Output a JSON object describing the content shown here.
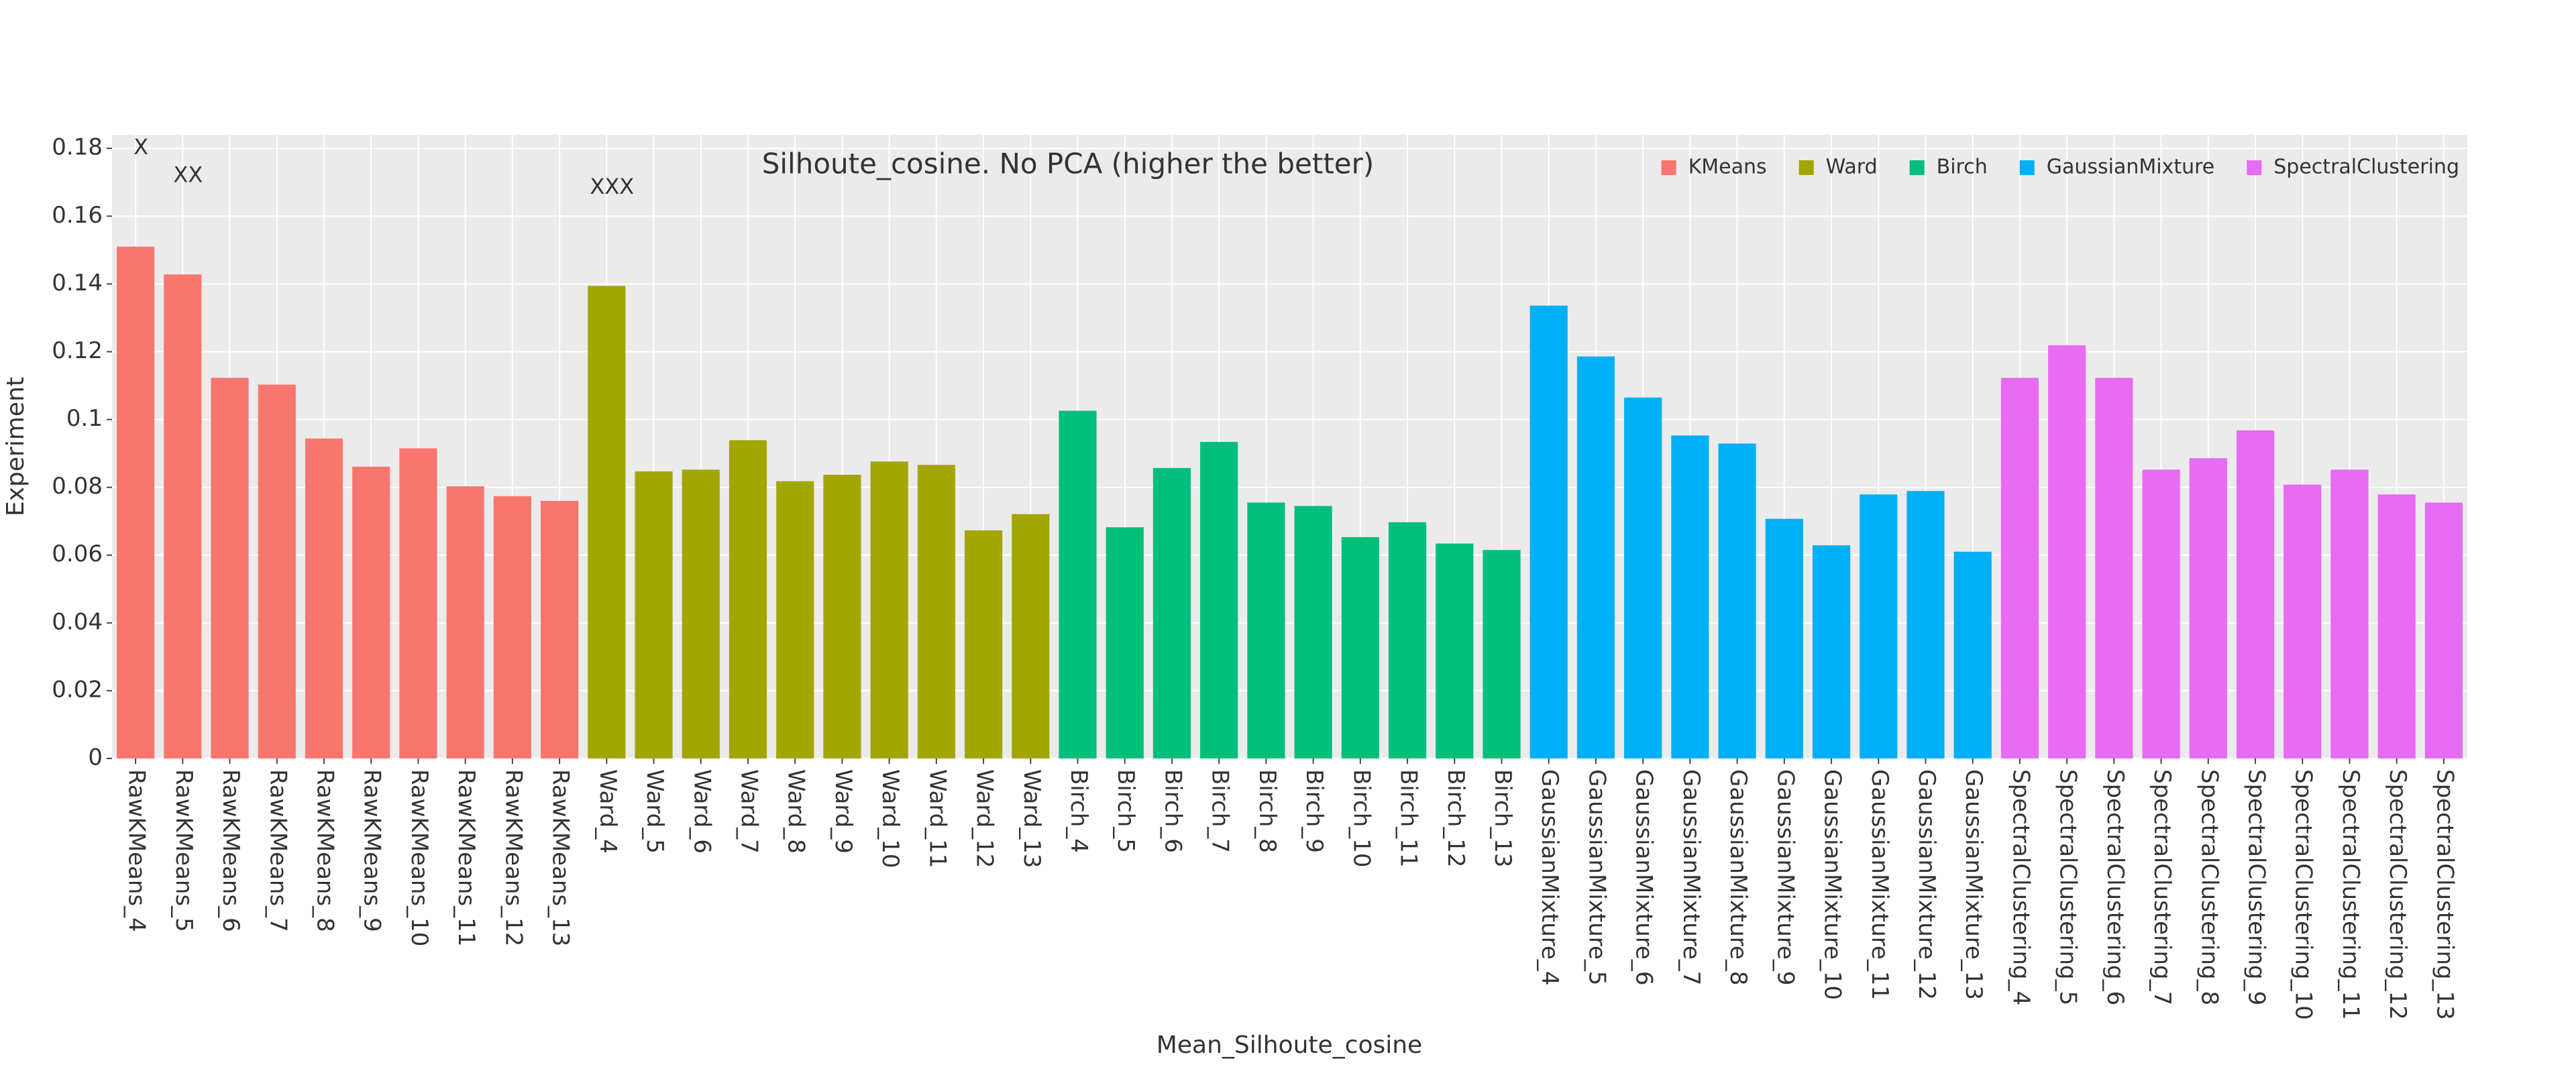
{
  "chart_data": {
    "type": "bar",
    "title": "Silhoute_cosine. No PCA (higher the better)",
    "x_label": "Mean_Silhoute_cosine",
    "y_label": "Experiment",
    "series": [
      {
        "name": "KMeans",
        "color": "#F8766D",
        "categories": [
          "RawKMeans_4",
          "RawKMeans_5",
          "RawKMeans_6",
          "RawKMeans_7",
          "RawKMeans_8",
          "RawKMeans_9",
          "RawKMeans_10",
          "RawKMeans_11",
          "RawKMeans_12",
          "RawKMeans_13"
        ],
        "values": [
          0.151,
          0.1428,
          0.1123,
          0.1103,
          0.0944,
          0.0861,
          0.0915,
          0.0803,
          0.0774,
          0.076
        ]
      },
      {
        "name": "Ward",
        "color": "#A3A500",
        "categories": [
          "Ward_4",
          "Ward_5",
          "Ward_6",
          "Ward_7",
          "Ward_8",
          "Ward_9",
          "Ward_10",
          "Ward_11",
          "Ward_12",
          "Ward_13"
        ],
        "values": [
          0.1394,
          0.0847,
          0.0852,
          0.0939,
          0.0818,
          0.0837,
          0.0876,
          0.0866,
          0.0673,
          0.0721
        ]
      },
      {
        "name": "Birch",
        "color": "#00BF7D",
        "categories": [
          "Birch_4",
          "Birch_5",
          "Birch_6",
          "Birch_7",
          "Birch_8",
          "Birch_9",
          "Birch_10",
          "Birch_11",
          "Birch_12",
          "Birch_13"
        ],
        "values": [
          0.1026,
          0.0682,
          0.0857,
          0.0934,
          0.0755,
          0.0745,
          0.0653,
          0.0697,
          0.0634,
          0.0615
        ]
      },
      {
        "name": "GaussianMixture",
        "color": "#00B0F6",
        "categories": [
          "GaussianMixture_4",
          "GaussianMixture_5",
          "GaussianMixture_6",
          "GaussianMixture_7",
          "GaussianMixture_8",
          "GaussianMixture_9",
          "GaussianMixture_10",
          "GaussianMixture_11",
          "GaussianMixture_12",
          "GaussianMixture_13"
        ],
        "values": [
          0.1336,
          0.1186,
          0.1065,
          0.0953,
          0.0929,
          0.0707,
          0.0629,
          0.0779,
          0.0789,
          0.061
        ]
      },
      {
        "name": "SpectralClustering",
        "color": "#E76BF3",
        "categories": [
          "SpectralClustering_4",
          "SpectralClustering_5",
          "SpectralClustering_6",
          "SpectralClustering_7",
          "SpectralClustering_8",
          "SpectralClustering_9",
          "SpectralClustering_10",
          "SpectralClustering_11",
          "SpectralClustering_12",
          "SpectralClustering_13"
        ],
        "values": [
          0.1123,
          0.1219,
          0.1123,
          0.0852,
          0.0886,
          0.0968,
          0.0808,
          0.0852,
          0.0779,
          0.0755
        ]
      }
    ],
    "annotations": [
      {
        "text": "X",
        "category": "RawKMeans_4",
        "y": 0.18
      },
      {
        "text": "XX",
        "category": "RawKMeans_5",
        "y": 0.1718
      },
      {
        "text": "XXX",
        "category": "Ward_4",
        "y": 0.1684
      }
    ],
    "ylim": [
      0,
      0.184
    ],
    "yticks": [
      0,
      0.02,
      0.04,
      0.06,
      0.08,
      0.1,
      0.12,
      0.14,
      0.16,
      0.18
    ],
    "grid": true,
    "legend": "top-right"
  }
}
